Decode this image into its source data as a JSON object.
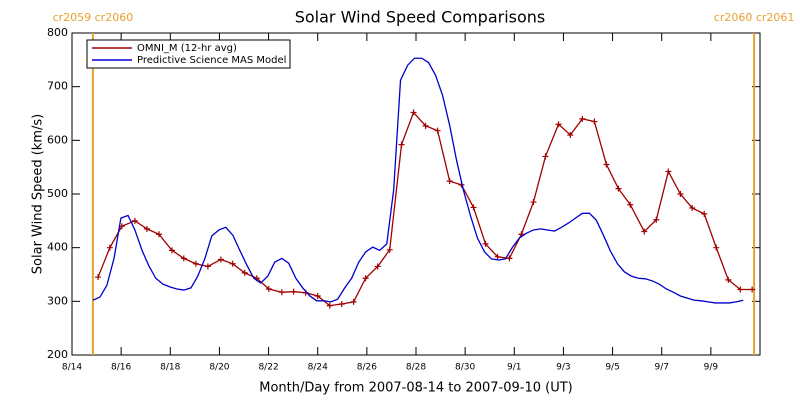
{
  "chart_data": {
    "type": "line",
    "title": "Solar Wind Speed Comparisons",
    "xlabel": "Month/Day from 2007-08-14 to 2007-09-10 (UT)",
    "ylabel": "Solar Wind Speed (km/s)",
    "xlim": [
      0,
      28
    ],
    "ylim": [
      200,
      800
    ],
    "xticks": [
      {
        "value": 0,
        "label": "8/14"
      },
      {
        "value": 2,
        "label": "8/16"
      },
      {
        "value": 4,
        "label": "8/18"
      },
      {
        "value": 6,
        "label": "8/20"
      },
      {
        "value": 8,
        "label": "8/22"
      },
      {
        "value": 10,
        "label": "8/24"
      },
      {
        "value": 12,
        "label": "8/26"
      },
      {
        "value": 14,
        "label": "8/28"
      },
      {
        "value": 16,
        "label": "8/30"
      },
      {
        "value": 18,
        "label": "9/1"
      },
      {
        "value": 20,
        "label": "9/3"
      },
      {
        "value": 22,
        "label": "9/5"
      },
      {
        "value": 24,
        "label": "9/7"
      },
      {
        "value": 26,
        "label": "9/9"
      }
    ],
    "yticks": [
      200,
      300,
      400,
      500,
      600,
      700,
      800
    ],
    "legend": "top-left",
    "annotations": [
      {
        "text": "cr2059 cr2060",
        "x": 0.85,
        "color": "#e8a030"
      },
      {
        "text": "cr2060 cr2061",
        "x": 27.76,
        "color": "#e8a030"
      }
    ],
    "series": [
      {
        "name": "OMNI_M (12-hr avg)",
        "color": "#a00000",
        "marker": "+",
        "x": [
          1.06,
          1.54,
          2.03,
          2.56,
          3.05,
          3.54,
          4.07,
          4.55,
          5.04,
          5.53,
          6.06,
          6.54,
          7.03,
          7.52,
          8.01,
          8.54,
          9.02,
          9.51,
          10.0,
          10.49,
          10.98,
          11.46,
          11.95,
          12.44,
          12.93,
          13.41,
          13.9,
          14.39,
          14.88,
          15.37,
          15.85,
          16.34,
          16.83,
          17.32,
          17.8,
          18.29,
          18.78,
          19.27,
          19.8,
          20.28,
          20.77,
          21.26,
          21.75,
          22.24,
          22.72,
          23.29,
          23.78,
          24.27,
          24.76,
          25.24,
          25.73,
          26.22,
          26.71,
          27.2,
          27.68
        ],
        "values": [
          345,
          400,
          440,
          450,
          435,
          425,
          395,
          380,
          370,
          365,
          378,
          370,
          353,
          343,
          323,
          317,
          318,
          316,
          310,
          292,
          295,
          299,
          343,
          365,
          396,
          592,
          652,
          627,
          618,
          524,
          517,
          475,
          407,
          383,
          380,
          425,
          485,
          570,
          630,
          610,
          640,
          635,
          555,
          510,
          480,
          430,
          452,
          542,
          500,
          474,
          463,
          400,
          340,
          322,
          322
        ]
      },
      {
        "name": "Predictive Science MAS Model",
        "color": "#0000cc",
        "x": [
          0.85,
          1.14,
          1.42,
          1.71,
          1.99,
          2.28,
          2.56,
          2.85,
          3.13,
          3.41,
          3.7,
          3.98,
          4.27,
          4.55,
          4.84,
          5.12,
          5.41,
          5.69,
          5.98,
          6.26,
          6.55,
          6.83,
          7.11,
          7.4,
          7.68,
          7.97,
          8.25,
          8.54,
          8.82,
          9.11,
          9.39,
          9.68,
          9.96,
          10.25,
          10.53,
          10.81,
          11.1,
          11.38,
          11.67,
          11.95,
          12.24,
          12.52,
          12.81,
          13.09,
          13.37,
          13.66,
          13.94,
          14.23,
          14.51,
          14.8,
          15.08,
          15.37,
          15.65,
          15.93,
          16.22,
          16.5,
          16.79,
          17.07,
          17.36,
          17.64,
          17.93,
          18.21,
          18.5,
          18.78,
          19.07,
          19.35,
          19.64,
          19.92,
          20.21,
          20.49,
          20.77,
          21.06,
          21.34,
          21.63,
          21.91,
          22.2,
          22.48,
          22.76,
          23.05,
          23.33,
          23.62,
          23.9,
          24.19,
          24.47,
          24.76,
          25.04,
          25.33,
          25.61,
          25.89,
          26.18,
          26.46,
          26.75,
          27.03,
          27.32
        ],
        "values": [
          302,
          308,
          330,
          380,
          455,
          460,
          433,
          395,
          366,
          343,
          332,
          327,
          323,
          321,
          325,
          347,
          380,
          422,
          433,
          438,
          423,
          395,
          368,
          343,
          334,
          347,
          373,
          380,
          371,
          343,
          325,
          310,
          301,
          301,
          299,
          304,
          325,
          343,
          373,
          392,
          401,
          395,
          407,
          507,
          712,
          740,
          753,
          753,
          745,
          721,
          684,
          628,
          563,
          507,
          459,
          418,
          392,
          379,
          377,
          379,
          401,
          418,
          427,
          433,
          435,
          433,
          431,
          438,
          446,
          455,
          464,
          464,
          451,
          423,
          394,
          370,
          355,
          347,
          343,
          342,
          338,
          332,
          323,
          317,
          310,
          306,
          302,
          301,
          299,
          297,
          297,
          297,
          299,
          302
        ]
      }
    ]
  }
}
